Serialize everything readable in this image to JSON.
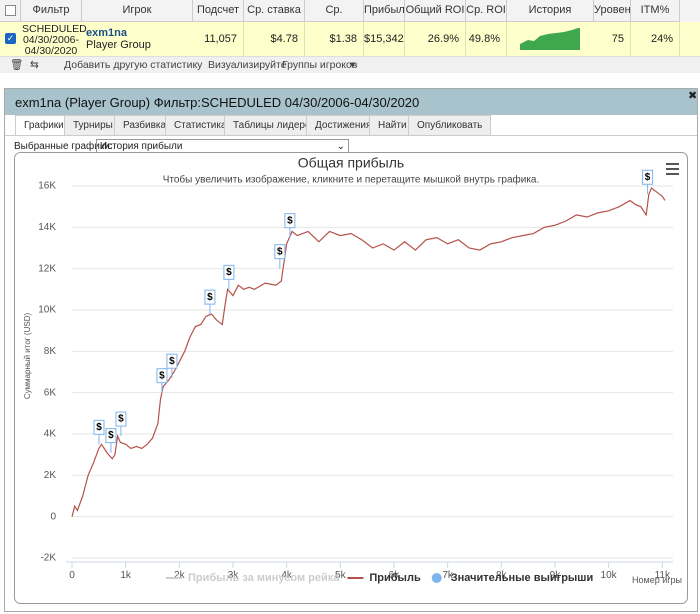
{
  "table": {
    "headers": [
      "Фильтр",
      "Игрок",
      "Подсчет",
      "Ср. ставка",
      "Ср. прибыль",
      "Прибыль",
      "Общий ROI",
      "Ср. ROI",
      "История прибыли",
      "Уровен",
      "ITM%"
    ],
    "rows": [
      {
        "filter": "SCHEDULED 04/30/2006-04/30/2020",
        "player": "exm1na",
        "group": "Player Group",
        "cells": [
          "11,057",
          "$4.78",
          "$1.38",
          "$15,342",
          "26.9%",
          "49.8%"
        ],
        "level": "75",
        "itm": "24%"
      }
    ]
  },
  "toolbar": [
    "Добавить другую статистику",
    "Визуализируйте",
    "Группы игроков"
  ],
  "panel": {
    "title": "exm1na (Player Group) Фильтр:SCHEDULED 04/30/2006-04/30/2020",
    "tabs": [
      "Графики",
      "Турниры",
      "Разбивка",
      "Статистика",
      "Таблицы лидеров",
      "Достижения",
      "Найти",
      "Опубликовать"
    ],
    "select_label": "Выбранные графики:",
    "select_value": "История прибыли"
  },
  "chart_data": {
    "type": "line",
    "title": "Общая прибыль",
    "subtitle": "Чтобы увеличить изображение, кликните и перетащите мышкой внутрь графика.",
    "y_label": "Суммарный итог (USD)",
    "x_label": "Номер игры",
    "grid": true,
    "xlim": [
      0,
      11200
    ],
    "ylim": [
      -2000,
      16000
    ],
    "xticks": [
      0,
      {
        "value": 1000,
        "label": "1k"
      },
      {
        "value": 2000,
        "label": "2k"
      },
      {
        "value": 3000,
        "label": "3k"
      },
      {
        "value": 4000,
        "label": "4k"
      },
      {
        "value": 5000,
        "label": "5k"
      },
      {
        "value": 6000,
        "label": "6k"
      },
      {
        "value": 7000,
        "label": "7k"
      },
      {
        "value": 8000,
        "label": "8k"
      },
      {
        "value": 9000,
        "label": "9k"
      },
      {
        "value": 10000,
        "label": "10k"
      },
      {
        "value": 11000,
        "label": "11k"
      }
    ],
    "yticks": [
      {
        "value": -2000,
        "label": "-2K"
      },
      0,
      {
        "value": 2000,
        "label": "2K"
      },
      {
        "value": 4000,
        "label": "4K"
      },
      {
        "value": 6000,
        "label": "6K"
      },
      {
        "value": 8000,
        "label": "8K"
      },
      {
        "value": 10000,
        "label": "10K"
      },
      {
        "value": 12000,
        "label": "12K"
      },
      {
        "value": 14000,
        "label": "14K"
      },
      {
        "value": 16000,
        "label": "16K"
      }
    ],
    "marker_symbol": "$",
    "series": [
      {
        "name": "Прибыль за минусом рейка",
        "color": "#cccccc"
      },
      {
        "name": "Прибыль",
        "color": "#b5524a",
        "x": [
          0,
          50,
          100,
          200,
          300,
          400,
          500,
          550,
          650,
          750,
          800,
          850,
          900,
          1000,
          1100,
          1200,
          1300,
          1400,
          1500,
          1600,
          1650,
          1700,
          1800,
          1900,
          2000,
          2100,
          2200,
          2300,
          2400,
          2500,
          2600,
          2700,
          2800,
          2850,
          2900,
          3000,
          3100,
          3200,
          3300,
          3400,
          3600,
          3800,
          3900,
          3950,
          4000,
          4100,
          4200,
          4400,
          4600,
          4800,
          5000,
          5200,
          5400,
          5600,
          5800,
          6000,
          6200,
          6400,
          6600,
          6800,
          7000,
          7200,
          7400,
          7600,
          7800,
          8000,
          8200,
          8400,
          8600,
          8800,
          9000,
          9200,
          9400,
          9600,
          9800,
          10000,
          10200,
          10400,
          10500,
          10600,
          10700,
          10750,
          10800,
          10900,
          11000,
          11050
        ],
        "values": [
          0,
          500,
          300,
          1000,
          2000,
          2600,
          3300,
          3500,
          3100,
          2800,
          3000,
          3900,
          3600,
          3500,
          3300,
          3400,
          3300,
          3500,
          3800,
          4500,
          5700,
          6300,
          6600,
          7000,
          7500,
          8000,
          8700,
          9200,
          9300,
          9700,
          9800,
          9500,
          9300,
          10200,
          11000,
          10700,
          11200,
          11000,
          11100,
          11000,
          11300,
          11200,
          11400,
          12300,
          13200,
          13800,
          13600,
          13800,
          13300,
          13800,
          13600,
          13700,
          13400,
          13000,
          13200,
          12900,
          13300,
          12900,
          13400,
          13500,
          13200,
          13400,
          13000,
          12900,
          13200,
          13300,
          13500,
          13600,
          13700,
          14000,
          14100,
          14300,
          14600,
          14500,
          14700,
          14800,
          15000,
          15300,
          15100,
          15000,
          14600,
          15600,
          15900,
          15700,
          15500,
          15300
        ]
      },
      {
        "name": "Значительные выигрыши",
        "color": "#7cb5ec",
        "x": [
          503,
          726,
          912,
          1676,
          1862,
          2570,
          2924,
          3873,
          4060,
          10726
        ],
        "values": [
          3500,
          3100,
          3900,
          6000,
          6700,
          9800,
          11000,
          12000,
          13500,
          15600
        ]
      }
    ]
  }
}
